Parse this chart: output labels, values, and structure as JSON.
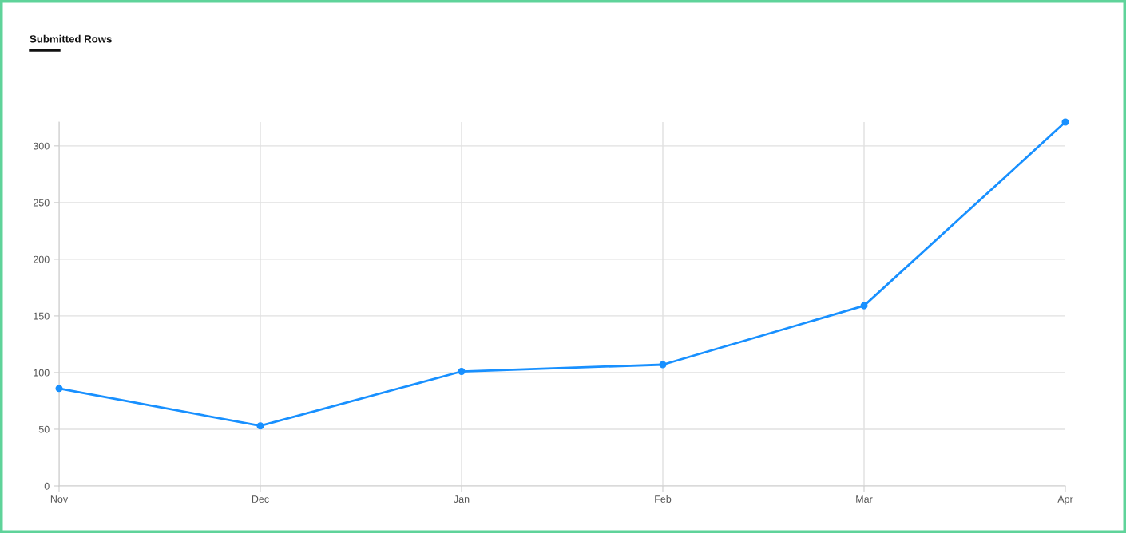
{
  "chart_data": {
    "type": "line",
    "title": "Submitted Rows",
    "categories": [
      "Nov",
      "Dec",
      "Jan",
      "Feb",
      "Mar",
      "Apr"
    ],
    "series": [
      {
        "color": "#1890ff",
        "values": [
          86,
          53,
          101,
          107,
          159,
          321
        ]
      }
    ],
    "ylim": [
      0,
      321
    ],
    "yticks": [
      0,
      50,
      100,
      150,
      200,
      250,
      300
    ],
    "grid": true,
    "marker": "circle",
    "line_style": "solid",
    "legend": false
  }
}
